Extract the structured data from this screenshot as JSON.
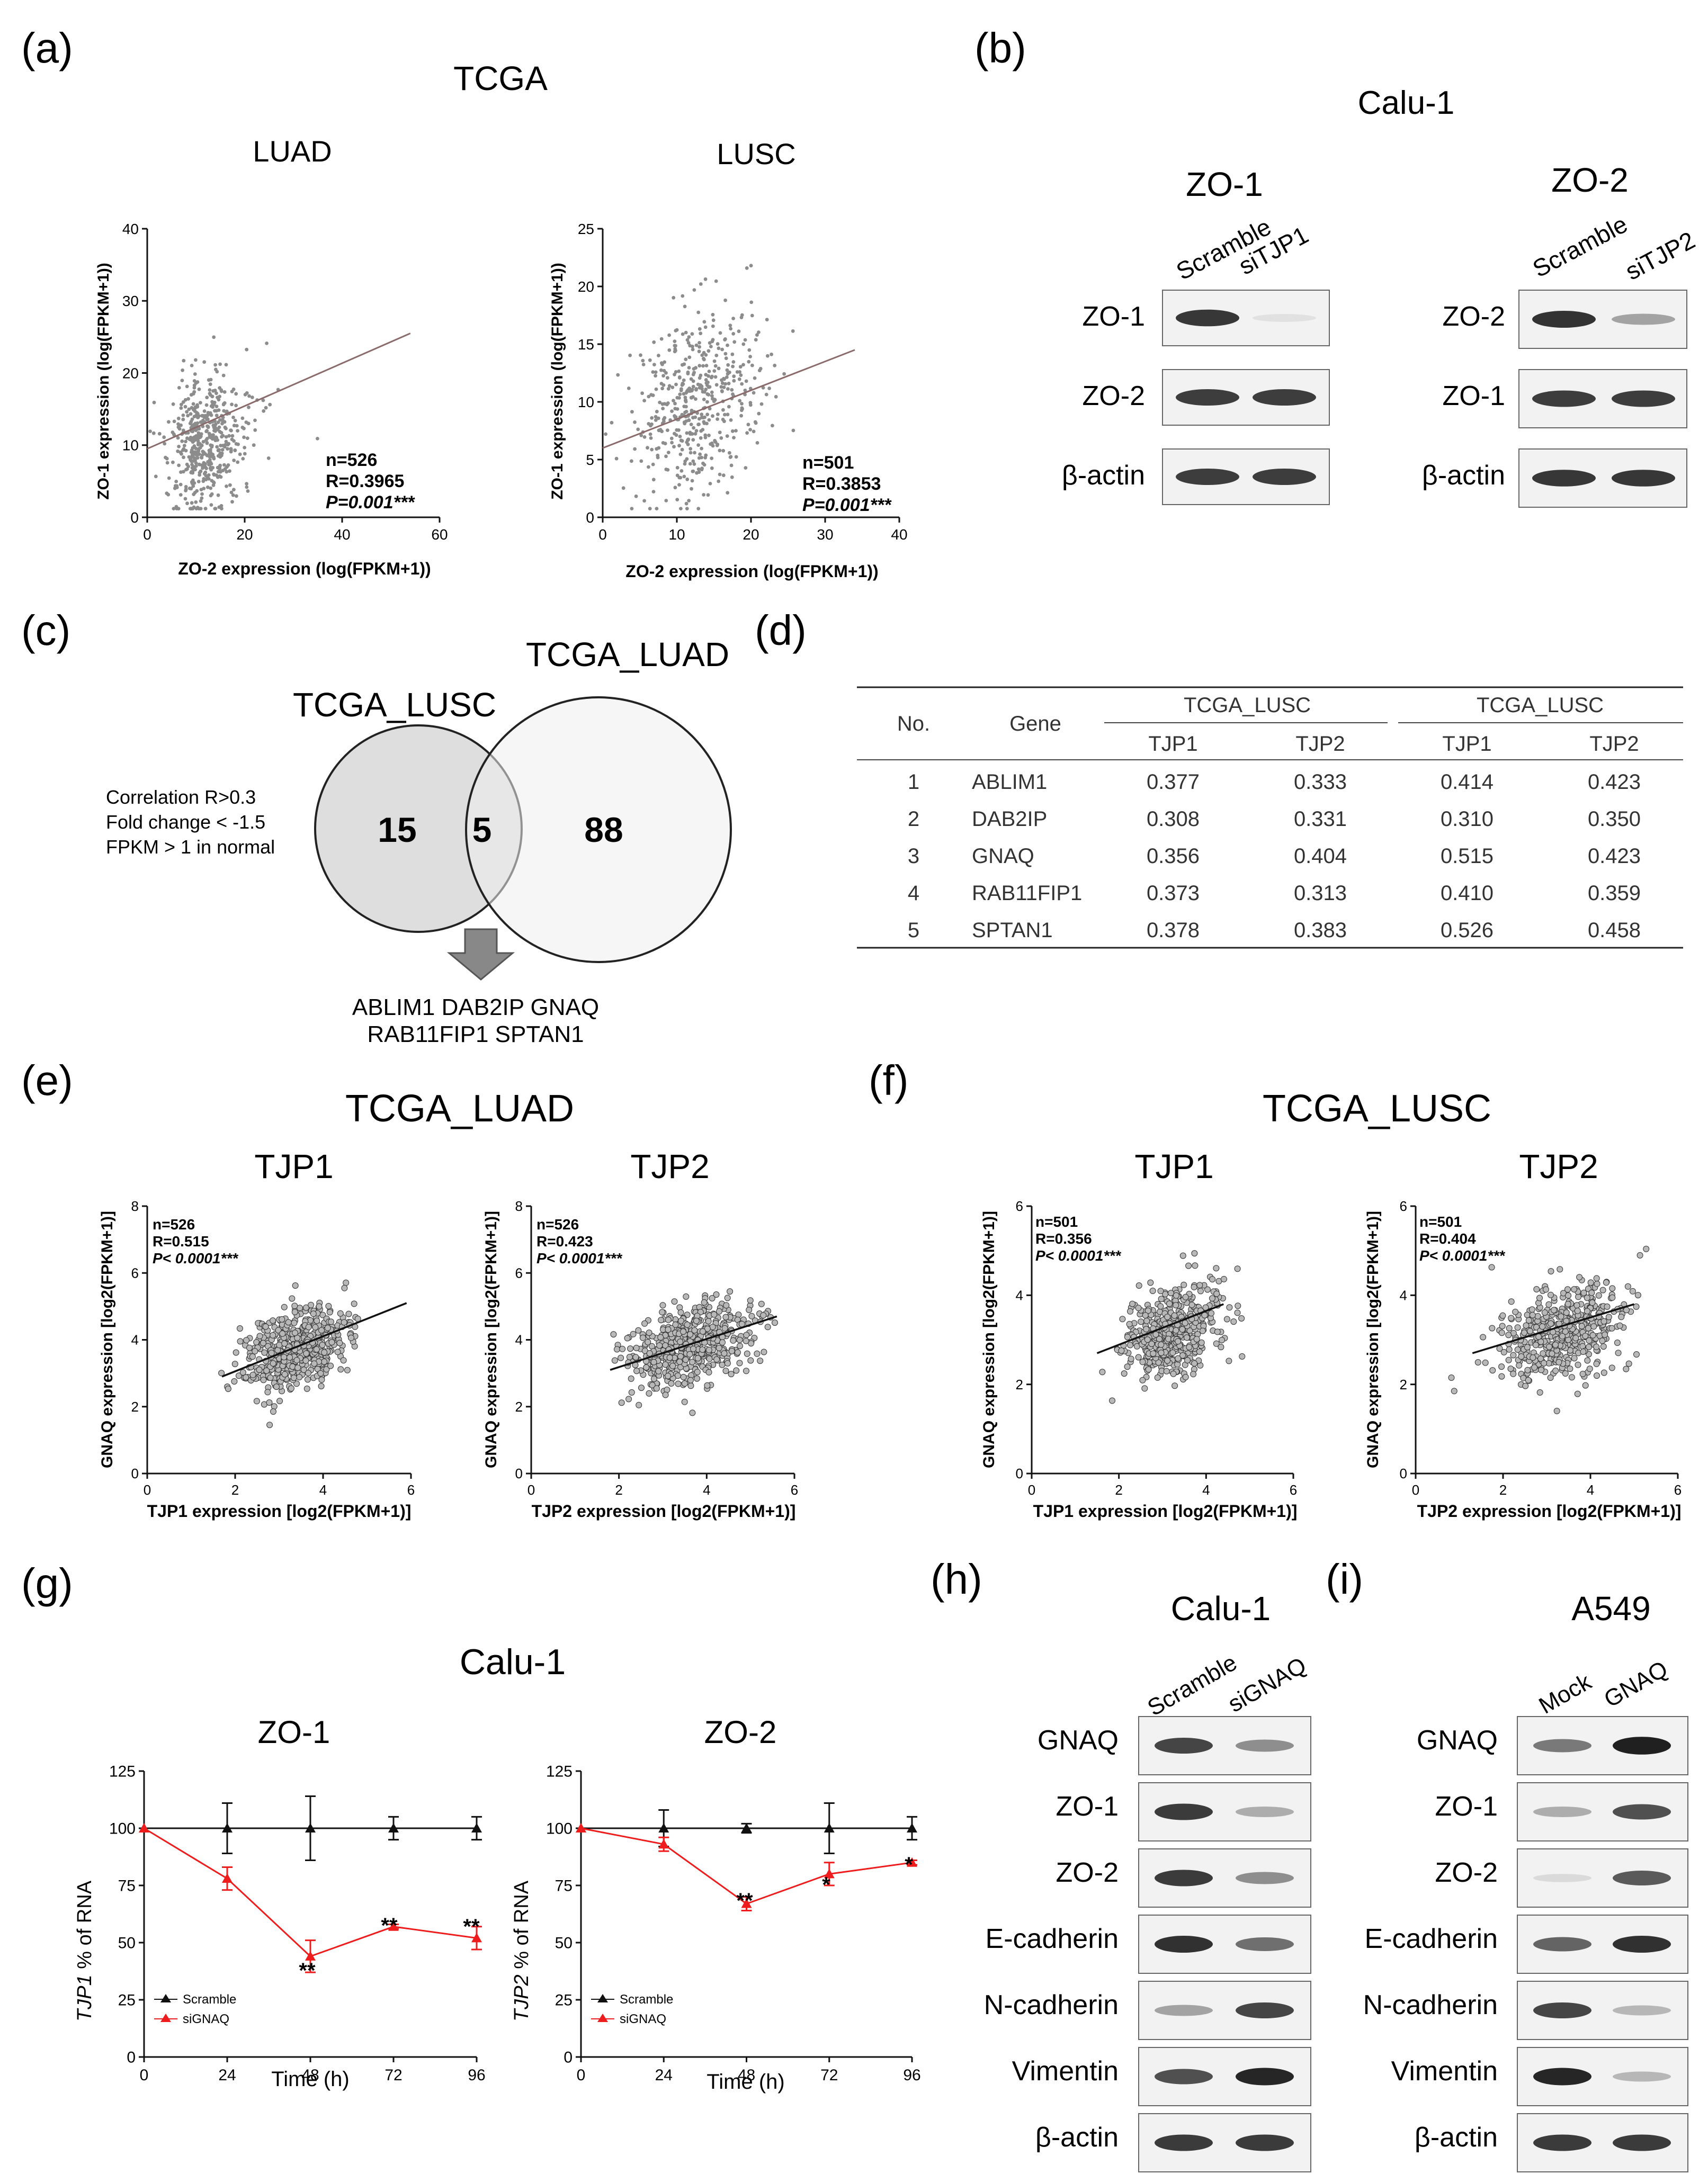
{
  "panels": {
    "a": {
      "letter": "(a)",
      "title": "TCGA",
      "plots": [
        {
          "subtitle": "LUAD",
          "ylabel": "ZO-1 expression (log(FPKM+1))",
          "xlabel": "ZO-2 expression (log(FPKM+1))",
          "stats": [
            "n=526",
            "R=0.3965",
            "P=0.001***"
          ]
        },
        {
          "subtitle": "LUSC",
          "ylabel": "ZO-1 expression (log(FPKM+1))",
          "xlabel": "ZO-2 expression (log(FPKM+1))",
          "stats": [
            "n=501",
            "R=0.3853",
            "P=0.001***"
          ]
        }
      ]
    },
    "b": {
      "letter": "(b)",
      "title": "Calu-1",
      "groups": [
        {
          "title": "ZO-1",
          "lanes": [
            "Scramble",
            "siTJP1"
          ],
          "rows": [
            "ZO-1",
            "ZO-2",
            "β-actin"
          ]
        },
        {
          "title": "ZO-2",
          "lanes": [
            "Scramble",
            "siTJP2"
          ],
          "rows": [
            "ZO-2",
            "ZO-1",
            "β-actin"
          ]
        }
      ]
    },
    "c": {
      "letter": "(c)",
      "left_label": "TCGA_LUSC",
      "right_label": "TCGA_LUAD",
      "criteria": [
        "Correlation R>0.3",
        "Fold change < -1.5",
        "FPKM > 1 in normal"
      ],
      "left_only": "15",
      "overlap": "5",
      "right_only": "88",
      "genes_line1": "ABLIM1 DAB2IP GNAQ",
      "genes_line2": "RAB11FIP1 SPTAN1"
    },
    "d": {
      "letter": "(d)",
      "col_no": "No.",
      "col_gene": "Gene",
      "group1": "TCGA_LUSC",
      "group2": "TCGA_LUSC",
      "sub": [
        "TJP1",
        "TJP2",
        "TJP1",
        "TJP2"
      ],
      "rows": [
        [
          "1",
          "ABLIM1",
          "0.377",
          "0.333",
          "0.414",
          "0.423"
        ],
        [
          "2",
          "DAB2IP",
          "0.308",
          "0.331",
          "0.310",
          "0.350"
        ],
        [
          "3",
          "GNAQ",
          "0.356",
          "0.404",
          "0.515",
          "0.423"
        ],
        [
          "4",
          "RAB11FIP1",
          "0.373",
          "0.313",
          "0.410",
          "0.359"
        ],
        [
          "5",
          "SPTAN1",
          "0.378",
          "0.383",
          "0.526",
          "0.458"
        ]
      ]
    },
    "e": {
      "letter": "(e)",
      "title": "TCGA_LUAD",
      "plots": [
        {
          "subtitle": "TJP1",
          "ylabel": "GNAQ expression [log2(FPKM+1)]",
          "xlabel": "TJP1 expression [log2(FPKM+1)]",
          "stats": [
            "n=526",
            "R=0.515",
            "P< 0.0001***"
          ]
        },
        {
          "subtitle": "TJP2",
          "ylabel": "GNAQ expression [log2(FPKM+1)]",
          "xlabel": "TJP2 expression [log2(FPKM+1)]",
          "stats": [
            "n=526",
            "R=0.423",
            "P< 0.0001***"
          ]
        }
      ]
    },
    "f": {
      "letter": "(f)",
      "title": "TCGA_LUSC",
      "plots": [
        {
          "subtitle": "TJP1",
          "ylabel": "GNAQ expression [log2(FPKM+1)]",
          "xlabel": "TJP1 expression [log2(FPKM+1)]",
          "stats": [
            "n=501",
            "R=0.356",
            "P< 0.0001***"
          ]
        },
        {
          "subtitle": "TJP2",
          "ylabel": "GNAQ expression [log2(FPKM+1)]",
          "xlabel": "TJP2 expression [log2(FPKM+1)]",
          "stats": [
            "n=501",
            "R=0.404",
            "P< 0.0001***"
          ]
        }
      ]
    },
    "g": {
      "letter": "(g)",
      "title": "Calu-1",
      "plots": [
        {
          "subtitle": "ZO-1",
          "gene": "TJP1",
          "ylabel_rest": " % of RNA",
          "xlabel": "Time (h)",
          "legend": [
            "Scramble",
            "siGNAQ"
          ],
          "sig": [
            "**",
            "**",
            "**"
          ]
        },
        {
          "subtitle": "ZO-2",
          "gene": "TJP2",
          "ylabel_rest": " % of RNA",
          "xlabel": "Time (h)",
          "legend": [
            "Scramble",
            "siGNAQ"
          ],
          "sig": [
            "**",
            "*",
            "*"
          ]
        }
      ]
    },
    "h": {
      "letter": "(h)",
      "title": "Calu-1",
      "lanes": [
        "Scramble",
        "siGNAQ"
      ],
      "rows": [
        "GNAQ",
        "ZO-1",
        "ZO-2",
        "E-cadherin",
        "N-cadherin",
        "Vimentin",
        "β-actin"
      ]
    },
    "i": {
      "letter": "(i)",
      "title": "A549",
      "lanes": [
        "Mock",
        "GNAQ"
      ],
      "rows": [
        "GNAQ",
        "ZO-1",
        "ZO-2",
        "E-cadherin",
        "N-cadherin",
        "Vimentin",
        "β-actin"
      ]
    }
  },
  "chart_data": [
    {
      "type": "scatter",
      "id": "a_luad",
      "title": "LUAD",
      "xlabel": "ZO-2 expression (log(FPKM+1))",
      "ylabel": "ZO-1 expression (log(FPKM+1))",
      "xlim": [
        0,
        60
      ],
      "ylim": [
        0,
        40
      ],
      "xticks": [
        0,
        20,
        40,
        60
      ],
      "yticks": [
        0,
        10,
        20,
        30,
        40
      ],
      "n": 526,
      "r": 0.3965,
      "center": [
        11,
        10.5
      ],
      "spread": [
        5.5,
        5
      ],
      "fit": [
        [
          0,
          9.5
        ],
        [
          54,
          25.5
        ]
      ]
    },
    {
      "type": "scatter",
      "id": "a_lusc",
      "title": "LUSC",
      "xlabel": "ZO-2 expression (log(FPKM+1))",
      "ylabel": "ZO-1 expression (log(FPKM+1))",
      "xlim": [
        0,
        40
      ],
      "ylim": [
        0,
        25
      ],
      "xticks": [
        0,
        10,
        20,
        30,
        40
      ],
      "yticks": [
        0,
        5,
        10,
        15,
        20,
        25
      ],
      "n": 501,
      "r": 0.3853,
      "center": [
        12,
        10
      ],
      "spread": [
        6,
        4
      ],
      "fit": [
        [
          0,
          6
        ],
        [
          34,
          14.5
        ]
      ]
    },
    {
      "type": "scatter",
      "id": "e_tjp1",
      "title": "TJP1",
      "xlabel": "TJP1 expression [log2(FPKM+1)]",
      "ylabel": "GNAQ expression [log2(FPKM+1)]",
      "xlim": [
        0,
        6
      ],
      "ylim": [
        0,
        8
      ],
      "xticks": [
        0,
        2,
        4,
        6
      ],
      "yticks": [
        0,
        2,
        4,
        6,
        8
      ],
      "n": 526,
      "r": 0.515,
      "center": [
        3.4,
        3.7
      ],
      "spread": [
        0.6,
        0.6
      ],
      "fit": [
        [
          1.7,
          2.9
        ],
        [
          5.9,
          5.1
        ]
      ]
    },
    {
      "type": "scatter",
      "id": "e_tjp2",
      "title": "TJP2",
      "xlabel": "TJP2 expression [log2(FPKM+1)]",
      "ylabel": "GNAQ expression [log2(FPKM+1)]",
      "xlim": [
        0,
        6
      ],
      "ylim": [
        0,
        8
      ],
      "xticks": [
        0,
        2,
        4,
        6
      ],
      "yticks": [
        0,
        2,
        4,
        6,
        8
      ],
      "n": 526,
      "r": 0.423,
      "center": [
        3.6,
        3.8
      ],
      "spread": [
        0.7,
        0.6
      ],
      "fit": [
        [
          1.8,
          3.1
        ],
        [
          5.6,
          4.7
        ]
      ]
    },
    {
      "type": "scatter",
      "id": "f_tjp1",
      "title": "TJP1",
      "xlabel": "TJP1 expression [log2(FPKM+1)]",
      "ylabel": "GNAQ expression [log2(FPKM+1)]",
      "xlim": [
        0,
        6
      ],
      "ylim": [
        0,
        6
      ],
      "xticks": [
        0,
        2,
        4,
        6
      ],
      "yticks": [
        0,
        2,
        4,
        6
      ],
      "n": 501,
      "r": 0.356,
      "center": [
        3.2,
        3.2
      ],
      "spread": [
        0.55,
        0.5
      ],
      "fit": [
        [
          1.5,
          2.7
        ],
        [
          4.4,
          3.8
        ]
      ]
    },
    {
      "type": "scatter",
      "id": "f_tjp2",
      "title": "TJP2",
      "xlabel": "TJP2 expression [log2(FPKM+1)]",
      "ylabel": "GNAQ expression [log2(FPKM+1)]",
      "xlim": [
        0,
        6
      ],
      "ylim": [
        0,
        6
      ],
      "xticks": [
        0,
        2,
        4,
        6
      ],
      "yticks": [
        0,
        2,
        4,
        6
      ],
      "n": 501,
      "r": 0.404,
      "center": [
        3.3,
        3.2
      ],
      "spread": [
        0.7,
        0.5
      ],
      "fit": [
        [
          1.3,
          2.7
        ],
        [
          5.0,
          3.8
        ]
      ]
    },
    {
      "type": "line",
      "id": "g_zo1",
      "title": "ZO-1",
      "xlabel": "Time (h)",
      "ylabel": "TJP1 % of RNA",
      "x": [
        0,
        24,
        48,
        72,
        96
      ],
      "xlim": [
        0,
        96
      ],
      "ylim": [
        0,
        125
      ],
      "xticks": [
        0,
        24,
        48,
        72,
        96
      ],
      "yticks": [
        0,
        25,
        50,
        75,
        100,
        125
      ],
      "series": [
        {
          "name": "Scramble",
          "values": [
            100,
            100,
            100,
            100,
            100
          ],
          "errors": [
            0,
            11,
            14,
            5,
            5
          ],
          "color": "#111111"
        },
        {
          "name": "siGNAQ",
          "values": [
            100,
            78,
            44,
            57,
            52
          ],
          "errors": [
            0,
            5,
            7,
            1,
            5
          ],
          "color": "#ee1c1c"
        }
      ]
    },
    {
      "type": "line",
      "id": "g_zo2",
      "title": "ZO-2",
      "xlabel": "Time (h)",
      "ylabel": "TJP2 % of RNA",
      "x": [
        0,
        24,
        48,
        72,
        96
      ],
      "xlim": [
        0,
        96
      ],
      "ylim": [
        0,
        125
      ],
      "xticks": [
        0,
        24,
        48,
        72,
        96
      ],
      "yticks": [
        0,
        25,
        50,
        75,
        100,
        125
      ],
      "series": [
        {
          "name": "Scramble",
          "values": [
            100,
            100,
            100,
            100,
            100
          ],
          "errors": [
            0,
            8,
            2,
            11,
            5
          ],
          "color": "#111111"
        },
        {
          "name": "siGNAQ",
          "values": [
            100,
            93,
            67,
            80,
            85
          ],
          "errors": [
            0,
            3,
            3,
            5,
            1
          ],
          "color": "#ee1c1c"
        }
      ]
    }
  ],
  "blots": {
    "b1": [
      [
        0.88,
        0.05
      ],
      [
        0.85,
        0.85
      ],
      [
        0.85,
        0.85
      ]
    ],
    "b2": [
      [
        0.9,
        0.35
      ],
      [
        0.85,
        0.85
      ],
      [
        0.88,
        0.88
      ]
    ],
    "h": [
      [
        0.8,
        0.45
      ],
      [
        0.85,
        0.3
      ],
      [
        0.85,
        0.45
      ],
      [
        0.9,
        0.6
      ],
      [
        0.35,
        0.8
      ],
      [
        0.75,
        0.95
      ],
      [
        0.85,
        0.85
      ]
    ],
    "i": [
      [
        0.55,
        0.98
      ],
      [
        0.3,
        0.75
      ],
      [
        0.08,
        0.7
      ],
      [
        0.65,
        0.9
      ],
      [
        0.8,
        0.25
      ],
      [
        0.95,
        0.25
      ],
      [
        0.85,
        0.85
      ]
    ]
  }
}
